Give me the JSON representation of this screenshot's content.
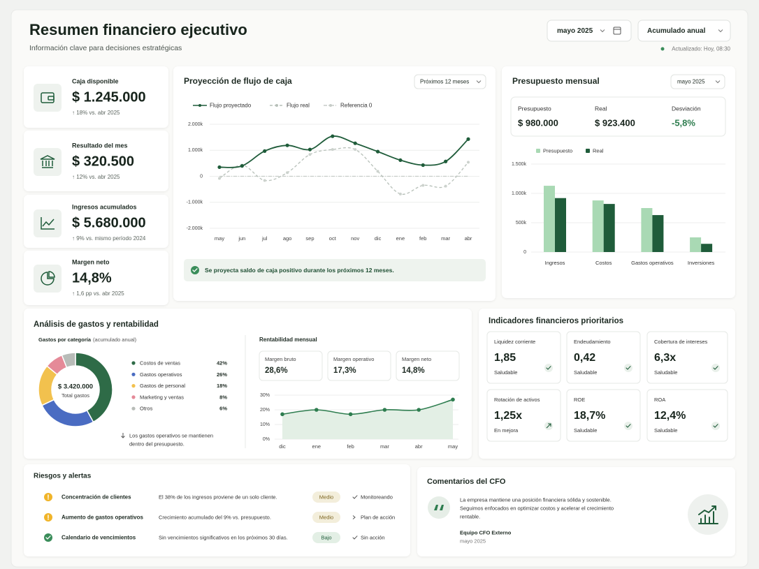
{
  "header": {
    "title": "Resumen financiero ejecutivo",
    "subtitle": "Información clave para decisiones estratégicas",
    "period": "mayo 2025",
    "view": "Acumulado anual",
    "updated": "Actualizado: Hoy, 08:30"
  },
  "kpis": [
    {
      "label": "Caja disponible",
      "value": "$ 1.245.000",
      "change": "↑ 18% vs. abr 2025"
    },
    {
      "label": "Resultado del mes",
      "value": "$ 320.500",
      "change": "↑ 12% vs. abr 2025"
    },
    {
      "label": "Ingresos acumulados",
      "value": "$ 5.680.000",
      "change": "↑ 9% vs. mismo período 2024"
    },
    {
      "label": "Margen neto",
      "value": "14,8%",
      "change": "↑ 1,6 pp vs. abr 2025"
    }
  ],
  "chart_data": [
    {
      "type": "line",
      "title": "Proyección de flujo de caja",
      "filter": "Próximos 12 meses",
      "categories": [
        "may",
        "jun",
        "jul",
        "ago",
        "sep",
        "oct",
        "nov",
        "dic",
        "ene",
        "feb",
        "mar",
        "abr"
      ],
      "series": [
        {
          "name": "Flujo proyectado",
          "color": "#1f5c3a",
          "style": "solid",
          "values": [
            350,
            400,
            970,
            1190,
            1030,
            1540,
            1270,
            950,
            620,
            430,
            570,
            1430
          ]
        },
        {
          "name": "Flujo real",
          "color": "#b7c0b9",
          "style": "dashed",
          "values": [
            -80,
            430,
            -160,
            140,
            840,
            1030,
            1030,
            190,
            -680,
            -350,
            -380,
            540
          ]
        },
        {
          "name": "Referencia 0",
          "color": "#c6ccc7",
          "style": "dashdot",
          "values": [
            0,
            0,
            0,
            0,
            0,
            0,
            0,
            0,
            0,
            0,
            0,
            0
          ]
        }
      ],
      "ylim": [
        -2000,
        2000
      ],
      "yticks": [
        {
          "value": 2000,
          "label": "2.000k"
        },
        {
          "value": 1000,
          "label": "1.000k"
        },
        0,
        {
          "value": -1000,
          "label": "-1.000k"
        },
        {
          "value": -2000,
          "label": "-2.000k"
        }
      ],
      "grid": true,
      "note": "Se proyecta saldo de caja positivo durante los próximos 12 meses."
    },
    {
      "type": "bar",
      "title": "Presupuesto mensual",
      "filter": "mayo 2025",
      "summary": [
        {
          "label": "Presupuesto",
          "value": "$ 980.000"
        },
        {
          "label": "Real",
          "value": "$ 923.400"
        },
        {
          "label": "Desviación",
          "value": "-5,8%"
        }
      ],
      "categories": [
        "Ingresos",
        "Costos",
        "Gastos operativos",
        "Inversiones"
      ],
      "series": [
        {
          "name": "Presupuesto",
          "color": "#a9d9b4",
          "values": [
            1130,
            880,
            750,
            250
          ]
        },
        {
          "name": "Real",
          "color": "#1f5c3a",
          "values": [
            920,
            820,
            630,
            140
          ]
        }
      ],
      "ylim": [
        0,
        1500
      ],
      "yticks": [
        {
          "value": 1500,
          "label": "1.500k"
        },
        {
          "value": 1000,
          "label": "1.000k"
        },
        {
          "value": 500,
          "label": "500k"
        },
        0
      ],
      "grid": true
    },
    {
      "type": "pie",
      "title": "Gastos por categoría",
      "subtitle": "(acumulado anual)",
      "center_value": "$ 3.420.000",
      "center_label": "Total gastos",
      "categories": [
        "Costos de ventas",
        "Gastos operativos",
        "Gastos de personal",
        "Marketing y ventas",
        "Otros"
      ],
      "values": [
        42,
        26,
        18,
        8,
        6
      ],
      "value_labels": [
        "42%",
        "26%",
        "18%",
        "8%",
        "6%"
      ],
      "colors": [
        "#2e6b47",
        "#4a6cc2",
        "#f2c14e",
        "#e58a98",
        "#b8bcb8"
      ],
      "note": [
        "Los gastos operativos se mantienen",
        "dentro del presupuesto."
      ]
    },
    {
      "type": "line",
      "title": "Rentabilidad mensual",
      "metrics": [
        {
          "label": "Margen bruto",
          "value": "28,6%"
        },
        {
          "label": "Margen operativo",
          "value": "17,3%"
        },
        {
          "label": "Margen neto",
          "value": "14,8%"
        }
      ],
      "categories": [
        "dic",
        "ene",
        "feb",
        "mar",
        "abr",
        "may"
      ],
      "values": [
        17,
        20,
        17,
        20,
        20,
        27
      ],
      "color": "#2e7d4f",
      "area": true,
      "ylim": [
        0,
        30
      ],
      "yticks": [
        {
          "value": 30,
          "label": "30%"
        },
        {
          "value": 20,
          "label": "20%"
        },
        {
          "value": 10,
          "label": "10%"
        },
        {
          "value": 0,
          "label": "0%"
        }
      ],
      "grid": true
    }
  ],
  "analysis": {
    "title": "Análisis de gastos y rentabilidad"
  },
  "indicators": {
    "title": "Indicadores financieros prioritarios",
    "items": [
      {
        "label": "Liquidez corriente",
        "value": "1,85",
        "status": "Saludable"
      },
      {
        "label": "Endeudamiento",
        "value": "0,42",
        "status": "Saludable"
      },
      {
        "label": "Cobertura de intereses",
        "value": "6,3x",
        "status": "Saludable"
      },
      {
        "label": "Rotación de activos",
        "value": "1,25x",
        "status": "En mejora"
      },
      {
        "label": "ROE",
        "value": "18,7%",
        "status": "Saludable"
      },
      {
        "label": "ROA",
        "value": "12,4%",
        "status": "Saludable"
      }
    ]
  },
  "risks": {
    "title": "Riesgos y alertas",
    "rows": [
      {
        "title": "Concentración de clientes",
        "description": "El 38% de los ingresos proviene de un solo cliente.",
        "level": "Medio",
        "status": "Monitoreando"
      },
      {
        "title": "Aumento de gastos operativos",
        "description": "Crecimiento acumulado del 9% vs. presupuesto.",
        "level": "Medio",
        "status": "Plan de acción"
      },
      {
        "title": "Calendario de vencimientos",
        "description": "Sin vencimientos significativos en los próximos 30 días.",
        "level": "Bajo",
        "status": "Sin acción"
      }
    ]
  },
  "cfo": {
    "title": "Comentarios del CFO",
    "text": [
      "La empresa mantiene una posición financiera sólida y sostenible.",
      "Seguimos enfocados en optimizar costos y acelerar el crecimiento",
      "rentable."
    ],
    "author": "Equipo CFO Externo",
    "date": "mayo 2025"
  }
}
